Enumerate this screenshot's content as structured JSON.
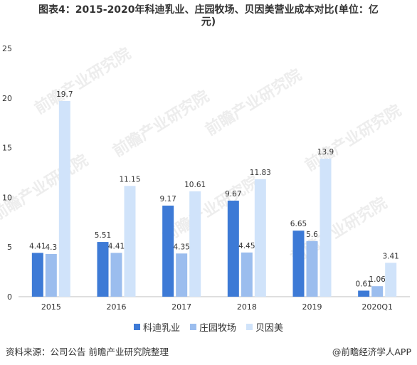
{
  "title": {
    "line1": "图表4：2015-2020年科迪乳业、庄园牧场、贝因美营业成本对比(单位：亿",
    "line2": "元)"
  },
  "colors": {
    "科迪乳业": "#3d7ad6",
    "庄园牧场": "#9bbdee",
    "贝因美": "#d0e3fa",
    "axis": "#bfbfbf",
    "text": "#333333",
    "watermark": "#ededed"
  },
  "chart_data": {
    "type": "bar",
    "categories": [
      "2015",
      "2016",
      "2017",
      "2018",
      "2019",
      "2020Q1"
    ],
    "series": [
      {
        "name": "科迪乳业",
        "values": [
          4.41,
          5.51,
          9.17,
          9.67,
          6.65,
          0.61
        ]
      },
      {
        "name": "庄园牧场",
        "values": [
          4.3,
          4.41,
          4.35,
          4.45,
          5.6,
          1.06
        ]
      },
      {
        "name": "贝因美",
        "values": [
          19.7,
          11.15,
          10.61,
          11.83,
          13.9,
          3.41
        ]
      }
    ],
    "data_labels": [
      [
        "4.41",
        "5.51",
        "9.17",
        "9.67",
        "6.65",
        "0.61"
      ],
      [
        "4.3",
        "4.41",
        "4.35",
        "4.45",
        "5.6",
        "1.06"
      ],
      [
        "19.7",
        "11.15",
        "10.61",
        "11.83",
        "13.9",
        "3.41"
      ]
    ],
    "ylim": [
      0,
      25
    ],
    "yticks": [
      0,
      5,
      10,
      15,
      20,
      25
    ],
    "xlabel": "",
    "ylabel": "",
    "grid": false,
    "legend": "bottom"
  },
  "watermark": {
    "brand": "前瞻产业研究院"
  },
  "footer": {
    "source": "资料来源：公司公告 前瞻产业研究院整理",
    "credit": "@前瞻经济学人APP"
  }
}
